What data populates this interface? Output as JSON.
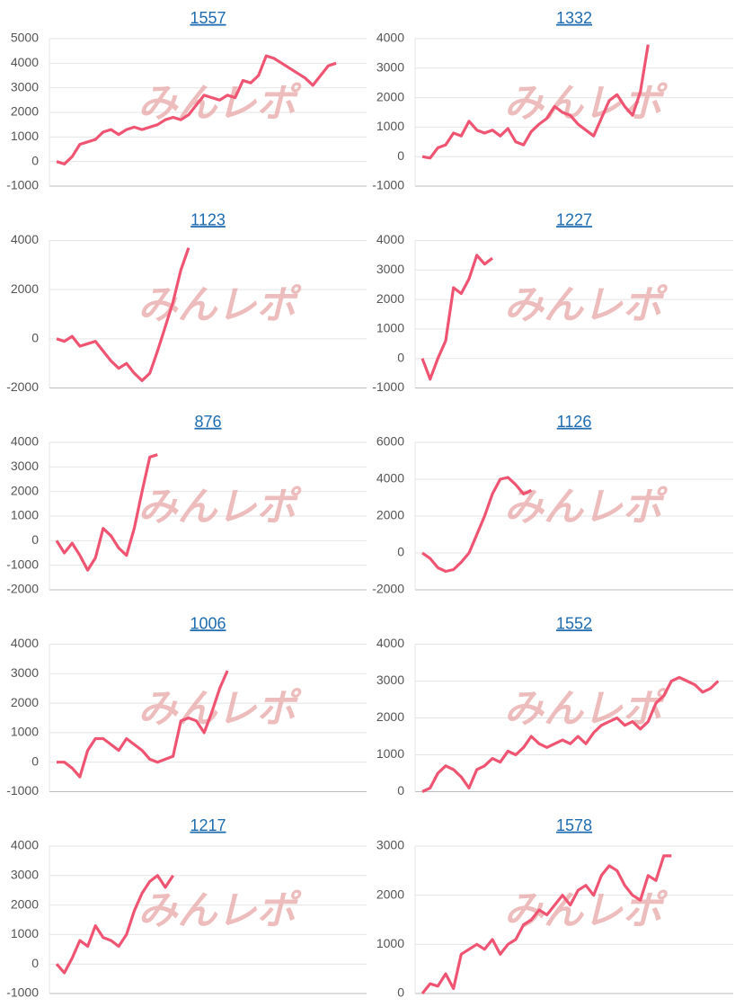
{
  "watermark": "みんレポ",
  "chart_data": [
    {
      "type": "line",
      "title": "1557",
      "color": "#ef5573",
      "ylim": [
        -1000,
        5000
      ],
      "yticks": [
        -1000,
        0,
        1000,
        2000,
        3000,
        4000,
        5000
      ],
      "values": [
        0,
        -100,
        200,
        700,
        800,
        900,
        1200,
        1300,
        1100,
        1300,
        1400,
        1300,
        1400,
        1500,
        1700,
        1800,
        1700,
        1900,
        2300,
        2700,
        2600,
        2500,
        2700,
        2600,
        3300,
        3200,
        3500,
        4300,
        4200,
        4000,
        3800,
        3600,
        3400,
        3100,
        3500,
        3900,
        4000,
        null,
        null,
        null
      ]
    },
    {
      "type": "line",
      "title": "1332",
      "color": "#ef5573",
      "ylim": [
        -1000,
        4000
      ],
      "yticks": [
        -1000,
        0,
        1000,
        2000,
        3000,
        4000
      ],
      "values": [
        0,
        -50,
        300,
        400,
        800,
        700,
        1200,
        900,
        800,
        900,
        700,
        950,
        500,
        400,
        850,
        1100,
        1300,
        1700,
        1500,
        1400,
        1100,
        900,
        700,
        1300,
        1900,
        2100,
        1700,
        1400,
        2200,
        3800,
        null,
        null,
        null,
        null,
        null,
        null,
        null,
        null,
        null,
        null
      ]
    },
    {
      "type": "line",
      "title": "1123",
      "color": "#ef5573",
      "ylim": [
        -2000,
        4000
      ],
      "yticks": [
        -2000,
        0,
        2000,
        4000
      ],
      "values": [
        0,
        -100,
        100,
        -300,
        -200,
        -100,
        -500,
        -900,
        -1200,
        -1000,
        -1400,
        -1700,
        -1400,
        -500,
        500,
        1500,
        2800,
        3700,
        null,
        null,
        null,
        null,
        null,
        null,
        null,
        null,
        null,
        null,
        null,
        null,
        null,
        null,
        null,
        null,
        null,
        null,
        null,
        null,
        null,
        null
      ]
    },
    {
      "type": "line",
      "title": "1227",
      "color": "#ef5573",
      "ylim": [
        -1000,
        4000
      ],
      "yticks": [
        -1000,
        0,
        1000,
        2000,
        3000,
        4000
      ],
      "values": [
        0,
        -700,
        0,
        600,
        2400,
        2200,
        2700,
        3500,
        3200,
        3400,
        null,
        null,
        null,
        null,
        null,
        null,
        null,
        null,
        null,
        null,
        null,
        null,
        null,
        null,
        null,
        null,
        null,
        null,
        null,
        null,
        null,
        null,
        null,
        null,
        null,
        null,
        null,
        null,
        null,
        null
      ]
    },
    {
      "type": "line",
      "title": "876",
      "color": "#ef5573",
      "ylim": [
        -2000,
        4000
      ],
      "yticks": [
        -2000,
        -1000,
        0,
        1000,
        2000,
        3000,
        4000
      ],
      "values": [
        0,
        -500,
        -100,
        -600,
        -1200,
        -700,
        500,
        200,
        -300,
        -600,
        500,
        2000,
        3400,
        3500,
        null,
        null,
        null,
        null,
        null,
        null,
        null,
        null,
        null,
        null,
        null,
        null,
        null,
        null,
        null,
        null,
        null,
        null,
        null,
        null,
        null,
        null,
        null,
        null,
        null,
        null
      ]
    },
    {
      "type": "line",
      "title": "1126",
      "color": "#ef5573",
      "ylim": [
        -2000,
        6000
      ],
      "yticks": [
        -2000,
        0,
        2000,
        4000,
        6000
      ],
      "values": [
        0,
        -300,
        -800,
        -1000,
        -900,
        -500,
        0,
        1000,
        2000,
        3200,
        4000,
        4100,
        3700,
        3200,
        3400,
        null,
        null,
        null,
        null,
        null,
        null,
        null,
        null,
        null,
        null,
        null,
        null,
        null,
        null,
        null,
        null,
        null,
        null,
        null,
        null,
        null,
        null,
        null,
        null,
        null
      ]
    },
    {
      "type": "line",
      "title": "1006",
      "color": "#ef5573",
      "ylim": [
        -1000,
        4000
      ],
      "yticks": [
        -1000,
        0,
        1000,
        2000,
        3000,
        4000
      ],
      "values": [
        0,
        0,
        -200,
        -500,
        400,
        800,
        800,
        600,
        400,
        800,
        600,
        400,
        100,
        0,
        100,
        200,
        1400,
        1500,
        1400,
        1000,
        1700,
        2500,
        3100,
        null,
        null,
        null,
        null,
        null,
        null,
        null,
        null,
        null,
        null,
        null,
        null,
        null,
        null,
        null,
        null,
        null
      ]
    },
    {
      "type": "line",
      "title": "1552",
      "color": "#ef5573",
      "ylim": [
        0,
        4000
      ],
      "yticks": [
        0,
        1000,
        2000,
        3000,
        4000
      ],
      "values": [
        0,
        100,
        500,
        700,
        600,
        400,
        100,
        600,
        700,
        900,
        800,
        1100,
        1000,
        1200,
        1500,
        1300,
        1200,
        1300,
        1400,
        1300,
        1500,
        1300,
        1600,
        1800,
        1900,
        2000,
        1800,
        1900,
        1700,
        1900,
        2400,
        2600,
        3000,
        3100,
        3000,
        2900,
        2700,
        2800,
        3000,
        null
      ]
    },
    {
      "type": "line",
      "title": "1217",
      "color": "#ef5573",
      "ylim": [
        -1000,
        4000
      ],
      "yticks": [
        -1000,
        0,
        1000,
        2000,
        3000,
        4000
      ],
      "values": [
        0,
        -300,
        200,
        800,
        600,
        1300,
        900,
        800,
        600,
        1000,
        1800,
        2400,
        2800,
        3000,
        2600,
        3000,
        null,
        null,
        null,
        null,
        null,
        null,
        null,
        null,
        null,
        null,
        null,
        null,
        null,
        null,
        null,
        null,
        null,
        null,
        null,
        null,
        null,
        null,
        null,
        null
      ]
    },
    {
      "type": "line",
      "title": "1578",
      "color": "#ef5573",
      "ylim": [
        0,
        3000
      ],
      "yticks": [
        0,
        1000,
        2000,
        3000
      ],
      "values": [
        0,
        200,
        150,
        400,
        100,
        800,
        900,
        1000,
        900,
        1100,
        800,
        1000,
        1100,
        1400,
        1500,
        1700,
        1600,
        1800,
        2000,
        1800,
        2100,
        2200,
        2000,
        2400,
        2600,
        2500,
        2200,
        2000,
        1900,
        2400,
        2300,
        2800,
        2800,
        null,
        null,
        null,
        null,
        null,
        null,
        null
      ]
    }
  ]
}
